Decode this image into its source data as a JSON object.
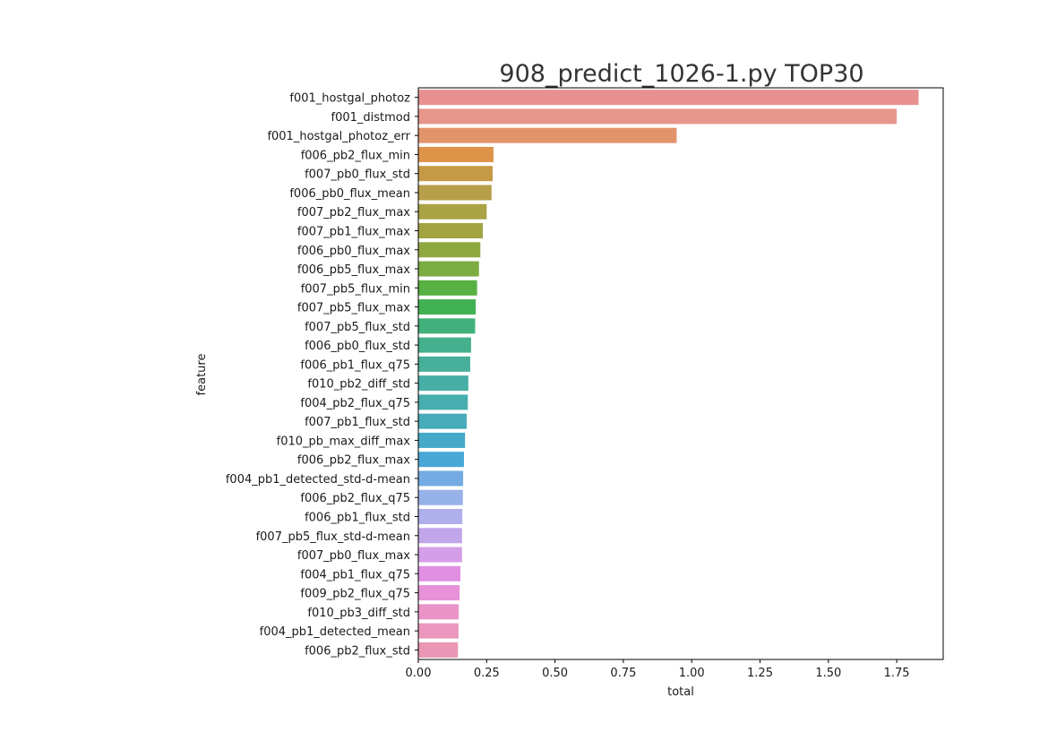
{
  "chart_data": {
    "type": "bar",
    "orientation": "horizontal",
    "title": "908_predict_1026-1.py TOP30",
    "xlabel": "total",
    "ylabel": "feature",
    "xlim": [
      0,
      1.92
    ],
    "xticks": [
      "0.00",
      "0.25",
      "0.50",
      "0.75",
      "1.00",
      "1.25",
      "1.50",
      "1.75"
    ],
    "grid": false,
    "categories": [
      "f001_hostgal_photoz",
      "f001_distmod",
      "f001_hostgal_photoz_err",
      "f006_pb2_flux_min",
      "f007_pb0_flux_std",
      "f006_pb0_flux_mean",
      "f007_pb2_flux_max",
      "f007_pb1_flux_max",
      "f006_pb0_flux_max",
      "f006_pb5_flux_max",
      "f007_pb5_flux_min",
      "f007_pb5_flux_max",
      "f007_pb5_flux_std",
      "f006_pb0_flux_std",
      "f006_pb1_flux_q75",
      "f010_pb2_diff_std",
      "f004_pb2_flux_q75",
      "f007_pb1_flux_std",
      "f010_pb_max_diff_max",
      "f006_pb2_flux_max",
      "f004_pb1_detected_std-d-mean",
      "f006_pb2_flux_q75",
      "f006_pb1_flux_std",
      "f007_pb5_flux_std-d-mean",
      "f007_pb0_flux_max",
      "f004_pb1_flux_q75",
      "f009_pb2_flux_q75",
      "f010_pb3_diff_std",
      "f004_pb1_detected_mean",
      "f006_pb2_flux_std"
    ],
    "values": [
      1.83,
      1.75,
      0.945,
      0.275,
      0.272,
      0.268,
      0.25,
      0.236,
      0.227,
      0.222,
      0.215,
      0.21,
      0.208,
      0.193,
      0.19,
      0.183,
      0.181,
      0.177,
      0.171,
      0.167,
      0.164,
      0.163,
      0.161,
      0.16,
      0.16,
      0.154,
      0.151,
      0.148,
      0.147,
      0.145
    ],
    "colors": [
      "#e8908f",
      "#e8968b",
      "#e3936b",
      "#dd9449",
      "#c49a46",
      "#b79e48",
      "#aba246",
      "#a2a441",
      "#8fa940",
      "#7bac42",
      "#57b041",
      "#42b154",
      "#41b07a",
      "#44b08d",
      "#47af9a",
      "#47aea5",
      "#47adae",
      "#47abba",
      "#45a9c8",
      "#48a7d7",
      "#73abe2",
      "#96b2e8",
      "#aeafeb",
      "#c1a6eb",
      "#d59ee8",
      "#e18fe3",
      "#e890d8",
      "#ea93c9",
      "#ea96bd",
      "#e997b5"
    ]
  }
}
